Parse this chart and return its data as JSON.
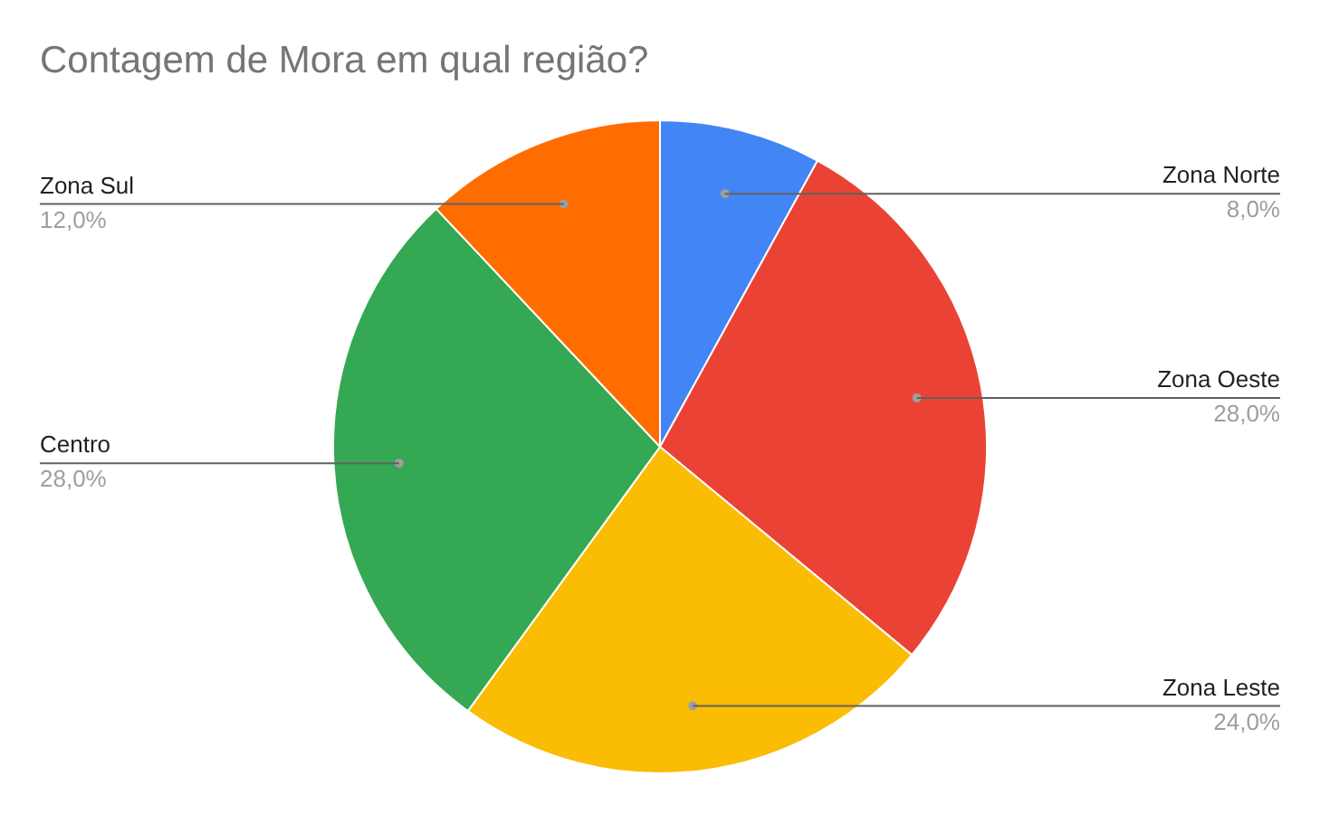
{
  "chart_data": {
    "type": "pie",
    "title": "Contagem de Mora em qual região?",
    "categories": [
      "Zona Norte",
      "Zona Oeste",
      "Zona Leste",
      "Centro",
      "Zona Sul"
    ],
    "values": [
      8,
      28,
      24,
      28,
      12
    ],
    "value_labels": [
      "8,0%",
      "28,0%",
      "24,0%",
      "28,0%",
      "12,0%"
    ],
    "colors": [
      "#4285f4",
      "#ea4335",
      "#fbbc04",
      "#34a853",
      "#ff6d01"
    ],
    "legend": false
  }
}
